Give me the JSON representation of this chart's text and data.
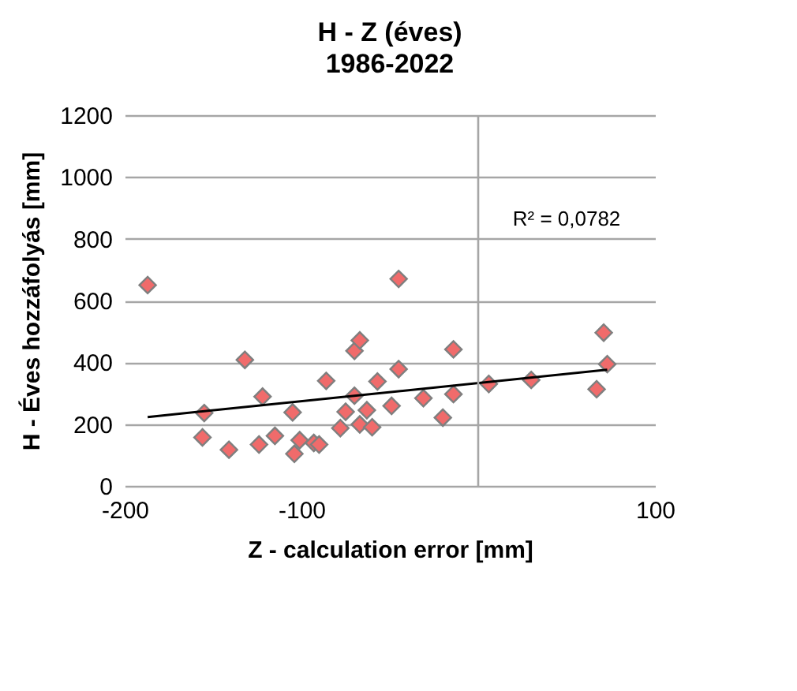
{
  "chart_data": {
    "type": "scatter",
    "title": "H - Z (éves)",
    "subtitle": "1986-2022",
    "xlabel": "Z - calculation error [mm]",
    "ylabel": "H - Éves hozzáfolyás [mm]",
    "xlim": [
      -200,
      100
    ],
    "xticks": [
      -200,
      -100,
      100
    ],
    "ylim": [
      0,
      1200
    ],
    "yticks": [
      0,
      200,
      400,
      600,
      800,
      1000,
      1200
    ],
    "grid": "y",
    "marker": "diamond",
    "series": [
      {
        "color": "#f06b6b",
        "x": [
          -187,
          -155,
          -156,
          -141,
          -132,
          -122,
          -124,
          -115,
          -105,
          -104,
          -101,
          -93,
          -90,
          -86,
          -78,
          -75,
          -70,
          -70,
          -67,
          -63,
          -67,
          -60,
          -57,
          -49,
          -45,
          -45,
          -31,
          -14,
          -14,
          -20,
          6,
          30,
          71,
          73,
          67
        ],
        "values": [
          650,
          236,
          157,
          117,
          408,
          289,
          134,
          162,
          238,
          104,
          148,
          139,
          134,
          340,
          187,
          240,
          292,
          437,
          471,
          245,
          199,
          190,
          338,
          259,
          378,
          670,
          284,
          442,
          297,
          221,
          330,
          343,
          496,
          394,
          313
        ]
      },
      {
        "type": "line",
        "color": "#000000",
        "marker": "none",
        "x": [
          -187,
          73
        ],
        "values": [
          223,
          376
        ]
      }
    ],
    "ref_lines": [
      {
        "axis": "x",
        "value": 0,
        "color": "#a6a6a6"
      }
    ],
    "annotations": [
      "R² = 0,0782"
    ]
  }
}
